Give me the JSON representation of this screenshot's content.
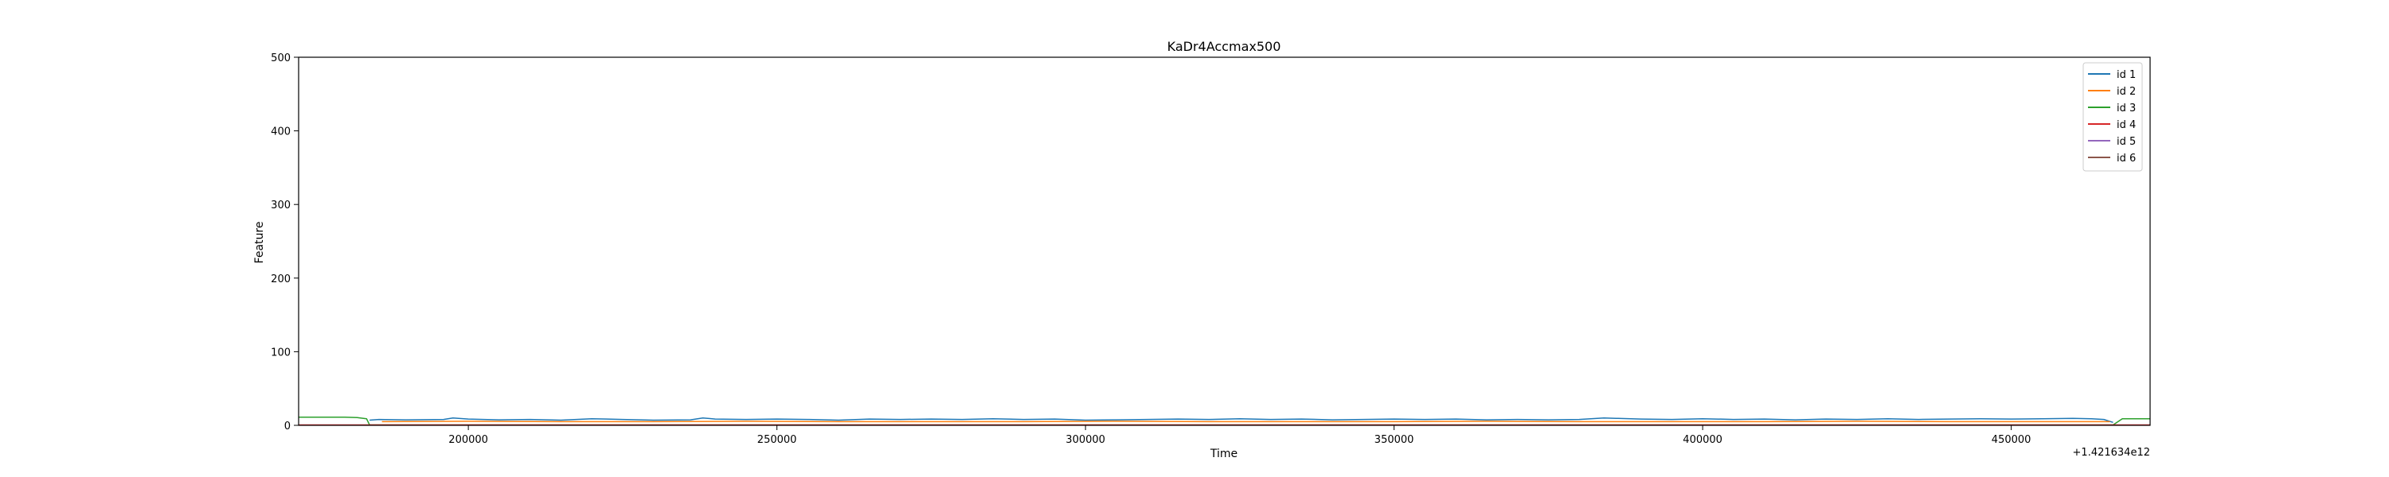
{
  "chart_data": {
    "type": "line",
    "title": "KaDr4Accmax500",
    "xlabel": "Time",
    "ylabel": "Feature",
    "x_offset_label": "+1.421634e12",
    "xlim": [
      172500,
      472500
    ],
    "ylim": [
      0,
      500
    ],
    "x_ticks": [
      200000,
      250000,
      300000,
      350000,
      400000,
      450000
    ],
    "x_tick_labels": [
      "200000",
      "250000",
      "300000",
      "350000",
      "400000",
      "450000"
    ],
    "y_ticks": [
      0,
      100,
      200,
      300,
      400,
      500
    ],
    "y_tick_labels": [
      "0",
      "100",
      "200",
      "300",
      "400",
      "500"
    ],
    "grid": false,
    "legend_position": "top-right",
    "series": [
      {
        "name": "id 1",
        "color": "#1f77b4",
        "x": [
          184000,
          185500,
          190000,
          196000,
          197500,
          200000,
          205000,
          210000,
          215000,
          220000,
          225000,
          230000,
          236000,
          238000,
          240000,
          245000,
          250000,
          255000,
          260000,
          265000,
          270000,
          275000,
          280000,
          285000,
          290000,
          295000,
          300000,
          305000,
          310000,
          315000,
          320000,
          325000,
          330000,
          335000,
          340000,
          345000,
          350000,
          355000,
          360000,
          365000,
          370000,
          375000,
          380000,
          384000,
          386000,
          390000,
          395000,
          400000,
          405000,
          410000,
          415000,
          420000,
          425000,
          430000,
          435000,
          440000,
          445000,
          450000,
          455000,
          460000,
          463000,
          465000,
          466500
        ],
        "y": [
          7,
          8,
          7.5,
          8,
          10,
          8.5,
          7.5,
          8,
          7,
          9,
          8,
          7,
          7.5,
          10,
          8.5,
          8,
          8.5,
          8,
          7,
          8.5,
          8,
          8.5,
          8,
          9,
          8,
          8.5,
          7,
          7.5,
          8,
          8.5,
          8,
          9,
          8,
          8.5,
          7.5,
          8,
          8.5,
          8,
          8.5,
          7.5,
          8,
          7.5,
          8,
          10,
          9.5,
          8.5,
          8,
          9,
          8,
          8.5,
          7.5,
          8.5,
          8,
          9,
          8,
          8.5,
          9,
          8.5,
          9,
          9.5,
          9,
          8,
          4
        ]
      },
      {
        "name": "id 2",
        "color": "#ff7f0e",
        "x": [
          186000,
          200000,
          215000,
          230000,
          245000,
          260000,
          275000,
          290000,
          305000,
          320000,
          335000,
          350000,
          365000,
          380000,
          395000,
          410000,
          425000,
          440000,
          455000,
          466000
        ],
        "y": [
          5,
          5.5,
          5,
          5,
          5.5,
          5,
          5,
          5,
          5.5,
          5,
          5,
          5,
          5.5,
          5,
          5,
          5,
          5.5,
          5,
          5,
          5
        ]
      },
      {
        "name": "id 3",
        "color": "#2ca02c",
        "x": [
          172500,
          176000,
          180000,
          182000,
          183500,
          184000,
          466500,
          468000,
          472500
        ],
        "y": [
          11,
          11,
          11,
          10.5,
          9,
          0.5,
          0.5,
          9,
          9
        ]
      },
      {
        "name": "id 4",
        "color": "#d62728",
        "x": [
          172500,
          472500
        ],
        "y": [
          0.5,
          0.5
        ]
      },
      {
        "name": "id 5",
        "color": "#9467bd",
        "x": [],
        "y": []
      },
      {
        "name": "id 6",
        "color": "#8c564b",
        "x": [],
        "y": []
      }
    ]
  }
}
